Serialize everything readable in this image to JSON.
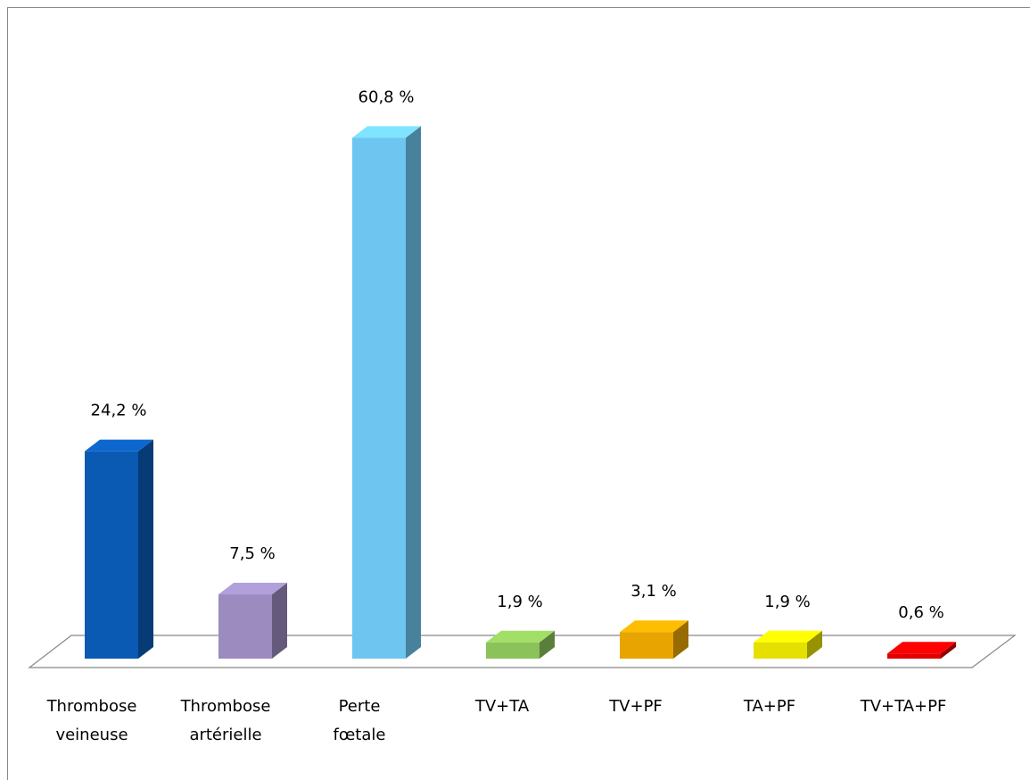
{
  "chart_data": {
    "type": "bar3d",
    "categories": [
      [
        "Thrombose",
        "veineuse"
      ],
      [
        "Thrombose",
        "artérielle"
      ],
      [
        "Perte",
        "fœtale"
      ],
      [
        "TV+TA"
      ],
      [
        "TV+PF"
      ],
      [
        "TA+PF"
      ],
      [
        "TV+TA+PF"
      ]
    ],
    "values": [
      24.2,
      7.5,
      60.8,
      1.9,
      3.1,
      1.9,
      0.6
    ],
    "value_labels": [
      "24,2 %",
      "7,5 %",
      "60,8 %",
      "1,9 %",
      "3,1 %",
      "1,9 %",
      "0,6 %"
    ],
    "colors": [
      "#0a5ab4",
      "#9b8bbf",
      "#6ec6f0",
      "#8cc25a",
      "#e8a400",
      "#e6e000",
      "#e00000"
    ]
  }
}
